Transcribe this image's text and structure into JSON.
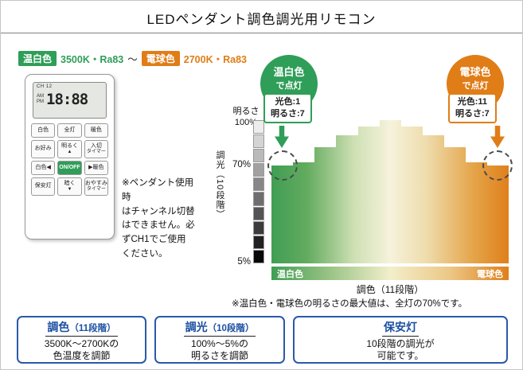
{
  "title": "LEDペンダント調色調光用リモコン",
  "spec": {
    "warm_badge": "温白色",
    "warm_spec": "3500K・Ra83",
    "tilde": "～",
    "bulb_badge": "電球色",
    "bulb_spec": "2700K・Ra83"
  },
  "remote": {
    "lcd": {
      "channel": "CH 12",
      "am": "AM",
      "pm": "PM",
      "time": "18:88"
    },
    "buttons": [
      {
        "label": "白色"
      },
      {
        "label": "全灯"
      },
      {
        "label": "暖色"
      },
      {
        "label": "お好み"
      },
      {
        "label": "明るく",
        "sub": "▲"
      },
      {
        "label": "入切",
        "sub": "タイマー"
      },
      {
        "label": "白色◀"
      },
      {
        "label": "ON/OFF"
      },
      {
        "label": "▶暖色"
      },
      {
        "label": "保安灯"
      },
      {
        "label": "暗く",
        "sub": "▼"
      },
      {
        "label": "おやすみ",
        "sub": "タイマー"
      }
    ]
  },
  "pendant_note": "※ペンダント使用時\nはチャンネル切替\nはできません。必\nずCH1でご使用\nください。",
  "callouts": {
    "warm": {
      "title": "温白色",
      "subtitle": "で点灯",
      "value1": "光色:1",
      "value2": "明るさ:7"
    },
    "bulb": {
      "title": "電球色",
      "subtitle": "で点灯",
      "value1": "光色:11",
      "value2": "明るさ:7"
    }
  },
  "chart_data": {
    "type": "area",
    "x_steps": 11,
    "values_percent": [
      70,
      72,
      82,
      90,
      96,
      100,
      96,
      90,
      82,
      72,
      70
    ],
    "ylim": [
      5,
      100
    ],
    "ylabel_brightness": "明るさ",
    "ytick_top": "100%",
    "ytick_mid": "70%",
    "ytick_bottom": "5%",
    "dim_axis_label": "調光（10段階）",
    "dim_steps": 10,
    "x_left_label": "温白色",
    "x_right_label": "電球色",
    "xlabel": "調色（11段階）",
    "note": "※温白色・電球色の明るさの最大値は、全灯の70%です。"
  },
  "feature_boxes": [
    {
      "heading": "調色",
      "suffix": "（11段階）",
      "body": "3500K～2700Kの\n色温度を調節"
    },
    {
      "heading": "調光",
      "suffix": "（10段階）",
      "body": "100%～5%の\n明るさを調節"
    },
    {
      "heading": "保安灯",
      "suffix": "",
      "body": "10段階の調光が\n可能です。"
    }
  ],
  "colors": {
    "warm_white_green": "#2f9e58",
    "bulb_orange": "#e07d17",
    "feature_blue": "#1a4fa0"
  }
}
